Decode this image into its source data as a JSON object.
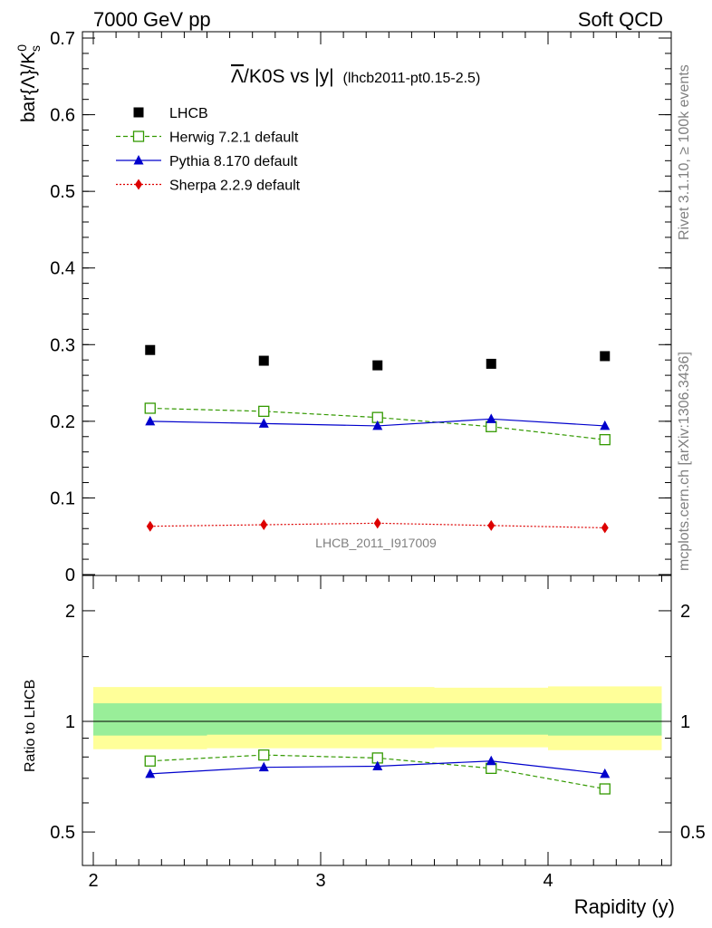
{
  "header": {
    "left": "7000 GeV pp",
    "right": "Soft QCD"
  },
  "side_labels": {
    "rivet": "Rivet 3.1.10, ≥ 100k events",
    "source": "mcplots.cern.ch [arXiv:1306.3436]"
  },
  "chart_data": [
    {
      "type": "line",
      "title_main": "Λ/K0S vs |y|",
      "title_overline": "Λ",
      "title_rest": "/K0S vs |y|",
      "title_sub": "(lhcb2011-pt0.15-2.5)",
      "ylabel": "bar{Λ}/K",
      "ylabel_main": "bar{Λ}/K",
      "ylabel_sup": "0",
      "ylabel_sub": "s",
      "watermark": "LHCB_2011_I917009",
      "ylim": [
        0,
        0.7
      ],
      "yticks": [
        0,
        0.1,
        0.2,
        0.3,
        0.4,
        0.5,
        0.6,
        0.7
      ],
      "ytick_labels": [
        "0",
        "0.1",
        "0.2",
        "0.3",
        "0.4",
        "0.5",
        "0.6",
        "0.7"
      ],
      "xlim": [
        1.95,
        4.55
      ],
      "x": [
        2.25,
        2.75,
        3.25,
        3.75,
        4.25
      ],
      "legend_placement": "top-left",
      "series": [
        {
          "name": "LHCB",
          "color": "#000000",
          "marker": "filled-square",
          "line": "none",
          "values": [
            0.293,
            0.279,
            0.273,
            0.275,
            0.285
          ]
        },
        {
          "name": "Herwig 7.2.1 default",
          "color": "#339900",
          "marker": "open-square",
          "line": "dashed",
          "values": [
            0.217,
            0.213,
            0.205,
            0.193,
            0.176
          ]
        },
        {
          "name": "Pythia 8.170 default",
          "color": "#0000cc",
          "marker": "filled-triangle",
          "line": "solid",
          "values": [
            0.2,
            0.197,
            0.194,
            0.203,
            0.194
          ]
        },
        {
          "name": "Sherpa 2.2.9 default",
          "color": "#dd0000",
          "marker": "filled-diamond",
          "line": "dotted",
          "values": [
            0.063,
            0.065,
            0.067,
            0.064,
            0.061
          ]
        }
      ]
    },
    {
      "type": "line",
      "ylabel": "Ratio to LHCB",
      "xlabel": "Rapidity (y)",
      "xlim": [
        1.95,
        4.55
      ],
      "ylim": [
        0.35,
        2.3
      ],
      "yticks": [
        0.5,
        1,
        2
      ],
      "ytick_labels": [
        "0.5",
        "1",
        "2"
      ],
      "xticks": [
        2,
        3,
        4
      ],
      "xtick_labels": [
        "2",
        "3",
        "4"
      ],
      "x": [
        2.25,
        2.75,
        3.25,
        3.75,
        4.25
      ],
      "bands": {
        "bins": [
          [
            2.0,
            2.5
          ],
          [
            2.5,
            3.0
          ],
          [
            3.0,
            3.5
          ],
          [
            3.5,
            4.0
          ],
          [
            4.0,
            4.5
          ]
        ],
        "stat": [
          [
            0.915,
            1.12
          ],
          [
            0.92,
            1.12
          ],
          [
            0.92,
            1.12
          ],
          [
            0.92,
            1.12
          ],
          [
            0.915,
            1.12
          ]
        ],
        "total": [
          [
            0.84,
            1.24
          ],
          [
            0.845,
            1.24
          ],
          [
            0.845,
            1.24
          ],
          [
            0.85,
            1.235
          ],
          [
            0.835,
            1.245
          ]
        ],
        "stat_color": "#99ee99",
        "total_color": "#ffff99"
      },
      "series": [
        {
          "name": "Herwig 7.2.1 default",
          "color": "#339900",
          "marker": "open-square",
          "line": "dashed",
          "values": [
            0.78,
            0.81,
            0.795,
            0.745,
            0.655
          ]
        },
        {
          "name": "Pythia 8.170 default",
          "color": "#0000cc",
          "marker": "filled-triangle",
          "line": "solid",
          "values": [
            0.72,
            0.75,
            0.755,
            0.78,
            0.72
          ]
        }
      ]
    }
  ]
}
